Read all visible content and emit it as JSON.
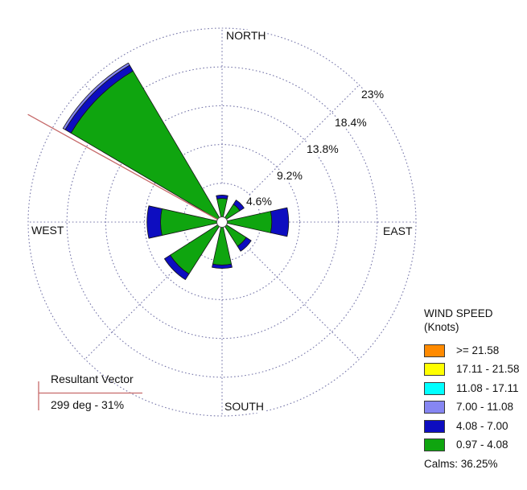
{
  "compass": {
    "north": "NORTH",
    "east": "EAST",
    "south": "SOUTH",
    "west": "WEST"
  },
  "chart_data": {
    "type": "wind-rose",
    "units": "Knots",
    "ring_labels": [
      "4.6%",
      "9.2%",
      "13.8%",
      "18.4%",
      "23%"
    ],
    "ring_values_pct": [
      4.6,
      9.2,
      13.8,
      18.4,
      23
    ],
    "speed_bins": [
      {
        "label": ">= 21.58",
        "color": "#FF8A00"
      },
      {
        "label": "17.11 - 21.58",
        "color": "#FFFF00"
      },
      {
        "label": "11.08 - 17.11",
        "color": "#00FFFF"
      },
      {
        "label": "7.00 - 11.08",
        "color": "#8686F2"
      },
      {
        "label": "4.08 - 7.00",
        "color": "#0D0DC0"
      },
      {
        "label": "0.97 - 4.08",
        "color": "#0FA50F"
      }
    ],
    "petals": [
      {
        "direction": "N",
        "bearing_deg": 0,
        "width_deg": 25,
        "stack": [
          {
            "bin": "0.97 - 4.08",
            "to_pct": 2.8
          },
          {
            "bin": "4.08 - 7.00",
            "to_pct": 3.2
          }
        ]
      },
      {
        "direction": "NE",
        "bearing_deg": 45,
        "width_deg": 25,
        "stack": [
          {
            "bin": "0.97 - 4.08",
            "to_pct": 2.5
          },
          {
            "bin": "4.08 - 7.00",
            "to_pct": 3.1
          }
        ]
      },
      {
        "direction": "E",
        "bearing_deg": 90,
        "width_deg": 25,
        "stack": [
          {
            "bin": "0.97 - 4.08",
            "to_pct": 5.9
          },
          {
            "bin": "4.08 - 7.00",
            "to_pct": 7.9
          }
        ]
      },
      {
        "direction": "SE",
        "bearing_deg": 135,
        "width_deg": 25,
        "stack": [
          {
            "bin": "0.97 - 4.08",
            "to_pct": 3.4
          },
          {
            "bin": "4.08 - 7.00",
            "to_pct": 4.1
          }
        ]
      },
      {
        "direction": "S",
        "bearing_deg": 180,
        "width_deg": 25,
        "stack": [
          {
            "bin": "0.97 - 4.08",
            "to_pct": 5.1
          },
          {
            "bin": "4.08 - 7.00",
            "to_pct": 5.5
          }
        ]
      },
      {
        "direction": "SW",
        "bearing_deg": 225,
        "width_deg": 25,
        "stack": [
          {
            "bin": "0.97 - 4.08",
            "to_pct": 7.3
          },
          {
            "bin": "4.08 - 7.00",
            "to_pct": 8.1
          }
        ]
      },
      {
        "direction": "W",
        "bearing_deg": 270,
        "width_deg": 25,
        "stack": [
          {
            "bin": "0.97 - 4.08",
            "to_pct": 7.3
          },
          {
            "bin": "4.08 - 7.00",
            "to_pct": 8.9
          }
        ]
      },
      {
        "direction": "NW",
        "bearing_deg": 315,
        "width_deg": 29,
        "stack": [
          {
            "bin": "0.97 - 4.08",
            "to_pct": 20.8
          },
          {
            "bin": "4.08 - 7.00",
            "to_pct": 21.6
          },
          {
            "bin": "7.00 - 11.08",
            "to_pct": 21.9
          }
        ]
      }
    ],
    "resultant_vector": {
      "bearing_deg": 299,
      "magnitude_pct": 31
    },
    "calms_pct": 36.25,
    "grid": {
      "color": "#7777AA",
      "style": "dotted",
      "spokes_deg": [
        0,
        45,
        90,
        135,
        180,
        225,
        270,
        315
      ]
    },
    "vector_color": "#C66A6A"
  },
  "annotations": {
    "resultant_title": "Resultant Vector",
    "resultant_value": "299 deg - 31%"
  },
  "legend": {
    "title": "WIND SPEED",
    "subtitle": "(Knots)",
    "calms": "Calms: 36.25%"
  }
}
